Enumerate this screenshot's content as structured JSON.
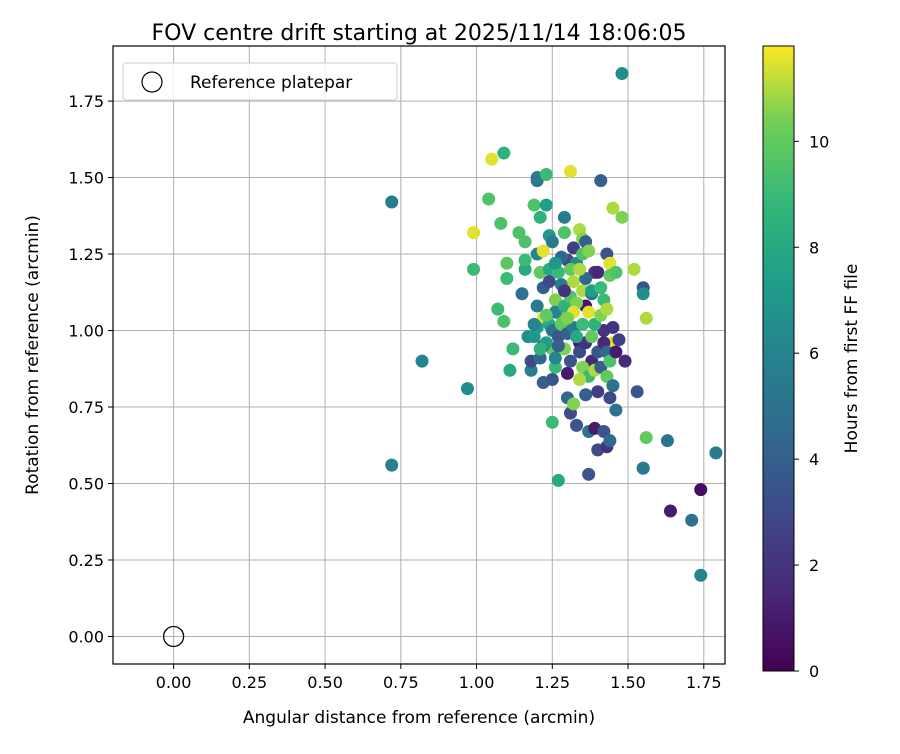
{
  "chart_data": {
    "type": "scatter",
    "title": "FOV centre drift starting at 2025/11/14 18:06:05",
    "xlabel": "Angular distance from reference (arcmin)",
    "ylabel": "Rotation from reference (arcmin)",
    "xlim": [
      -0.2,
      1.82
    ],
    "ylim": [
      -0.09,
      1.93
    ],
    "x_ticks": [
      "0.00",
      "0.25",
      "0.50",
      "0.75",
      "1.00",
      "1.25",
      "1.50",
      "1.75"
    ],
    "y_ticks": [
      "0.00",
      "0.25",
      "0.50",
      "0.75",
      "1.00",
      "1.25",
      "1.50",
      "1.75"
    ],
    "grid": true,
    "legend": {
      "position": "top-left",
      "entries": [
        "Reference platepar"
      ]
    },
    "colorbar": {
      "label": "Hours from first FF file",
      "colormap": "viridis",
      "range": [
        0,
        11.8
      ],
      "ticks": [
        "0",
        "2",
        "4",
        "6",
        "8",
        "10"
      ]
    },
    "reference_point": {
      "x": 0.0,
      "y": 0.0
    },
    "points": [
      {
        "x": 1.48,
        "y": 1.84,
        "c": 6.5
      },
      {
        "x": 0.72,
        "y": 1.42,
        "c": 5.5
      },
      {
        "x": 0.82,
        "y": 0.9,
        "c": 6.0
      },
      {
        "x": 0.97,
        "y": 0.81,
        "c": 6.5
      },
      {
        "x": 0.72,
        "y": 0.56,
        "c": 5.8
      },
      {
        "x": 1.09,
        "y": 1.58,
        "c": 8.5
      },
      {
        "x": 1.05,
        "y": 1.56,
        "c": 11.5
      },
      {
        "x": 1.04,
        "y": 1.43,
        "c": 9.5
      },
      {
        "x": 0.99,
        "y": 1.32,
        "c": 11.5
      },
      {
        "x": 0.99,
        "y": 1.2,
        "c": 9.0
      },
      {
        "x": 1.08,
        "y": 1.35,
        "c": 9.5
      },
      {
        "x": 1.1,
        "y": 1.17,
        "c": 9.0
      },
      {
        "x": 1.1,
        "y": 1.22,
        "c": 9.8
      },
      {
        "x": 1.07,
        "y": 1.07,
        "c": 9.0
      },
      {
        "x": 1.09,
        "y": 1.03,
        "c": 9.5
      },
      {
        "x": 1.11,
        "y": 0.87,
        "c": 8.0
      },
      {
        "x": 1.12,
        "y": 0.94,
        "c": 9.0
      },
      {
        "x": 1.14,
        "y": 1.32,
        "c": 9.5
      },
      {
        "x": 1.15,
        "y": 1.12,
        "c": 5.0
      },
      {
        "x": 1.16,
        "y": 1.29,
        "c": 9.5
      },
      {
        "x": 1.16,
        "y": 1.2,
        "c": 8.0
      },
      {
        "x": 1.16,
        "y": 1.23,
        "c": 9.0
      },
      {
        "x": 1.17,
        "y": 0.98,
        "c": 6.5
      },
      {
        "x": 1.18,
        "y": 0.87,
        "c": 5.5
      },
      {
        "x": 1.19,
        "y": 1.41,
        "c": 9.5
      },
      {
        "x": 1.2,
        "y": 1.49,
        "c": 5.0
      },
      {
        "x": 1.2,
        "y": 1.5,
        "c": 5.5
      },
      {
        "x": 1.2,
        "y": 1.25,
        "c": 6.0
      },
      {
        "x": 1.21,
        "y": 1.37,
        "c": 8.5
      },
      {
        "x": 1.21,
        "y": 1.19,
        "c": 10.0
      },
      {
        "x": 1.22,
        "y": 1.14,
        "c": 4.0
      },
      {
        "x": 1.22,
        "y": 0.83,
        "c": 4.0
      },
      {
        "x": 1.22,
        "y": 1.04,
        "c": 11.5
      },
      {
        "x": 1.23,
        "y": 1.51,
        "c": 9.0
      },
      {
        "x": 1.23,
        "y": 1.41,
        "c": 7.5
      },
      {
        "x": 1.24,
        "y": 1.2,
        "c": 8.0
      },
      {
        "x": 1.24,
        "y": 1.31,
        "c": 7.0
      },
      {
        "x": 1.25,
        "y": 0.84,
        "c": 3.5
      },
      {
        "x": 1.25,
        "y": 0.7,
        "c": 9.0
      },
      {
        "x": 1.25,
        "y": 0.94,
        "c": 10.0
      },
      {
        "x": 1.26,
        "y": 0.88,
        "c": 9.0
      },
      {
        "x": 1.26,
        "y": 1.1,
        "c": 10.5
      },
      {
        "x": 1.27,
        "y": 0.51,
        "c": 8.0
      },
      {
        "x": 1.28,
        "y": 1.05,
        "c": 10.5
      },
      {
        "x": 1.28,
        "y": 1.15,
        "c": 5.5
      },
      {
        "x": 1.29,
        "y": 1.37,
        "c": 5.5
      },
      {
        "x": 1.29,
        "y": 1.32,
        "c": 9.5
      },
      {
        "x": 1.3,
        "y": 0.86,
        "c": 1.0
      },
      {
        "x": 1.3,
        "y": 0.78,
        "c": 4.5
      },
      {
        "x": 1.31,
        "y": 1.52,
        "c": 11.5
      },
      {
        "x": 1.31,
        "y": 0.73,
        "c": 3.0
      },
      {
        "x": 1.32,
        "y": 0.76,
        "c": 10.5
      },
      {
        "x": 1.32,
        "y": 1.27,
        "c": 2.5
      },
      {
        "x": 1.32,
        "y": 1.16,
        "c": 11.0
      },
      {
        "x": 1.33,
        "y": 0.69,
        "c": 3.5
      },
      {
        "x": 1.34,
        "y": 0.96,
        "c": 1.0
      },
      {
        "x": 1.34,
        "y": 1.33,
        "c": 11.0
      },
      {
        "x": 1.35,
        "y": 1.3,
        "c": 10.5
      },
      {
        "x": 1.35,
        "y": 1.13,
        "c": 11.0
      },
      {
        "x": 1.36,
        "y": 0.79,
        "c": 4.0
      },
      {
        "x": 1.36,
        "y": 1.08,
        "c": 0.8
      },
      {
        "x": 1.37,
        "y": 0.67,
        "c": 5.0
      },
      {
        "x": 1.37,
        "y": 0.53,
        "c": 3.5
      },
      {
        "x": 1.38,
        "y": 0.9,
        "c": 1.5
      },
      {
        "x": 1.39,
        "y": 1.19,
        "c": 2.0
      },
      {
        "x": 1.39,
        "y": 0.68,
        "c": 1.0
      },
      {
        "x": 1.4,
        "y": 0.61,
        "c": 3.0
      },
      {
        "x": 1.41,
        "y": 1.49,
        "c": 4.0
      },
      {
        "x": 1.42,
        "y": 1.0,
        "c": 2.0
      },
      {
        "x": 1.42,
        "y": 0.67,
        "c": 3.5
      },
      {
        "x": 1.43,
        "y": 1.25,
        "c": 3.5
      },
      {
        "x": 1.43,
        "y": 0.62,
        "c": 2.0
      },
      {
        "x": 1.44,
        "y": 0.64,
        "c": 4.5
      },
      {
        "x": 1.44,
        "y": 1.22,
        "c": 11.5
      },
      {
        "x": 1.45,
        "y": 1.4,
        "c": 11.0
      },
      {
        "x": 1.45,
        "y": 0.96,
        "c": 11.5
      },
      {
        "x": 1.46,
        "y": 0.74,
        "c": 5.0
      },
      {
        "x": 1.47,
        "y": 0.97,
        "c": 2.5
      },
      {
        "x": 1.48,
        "y": 1.37,
        "c": 10.5
      },
      {
        "x": 1.49,
        "y": 0.9,
        "c": 1.5
      },
      {
        "x": 1.52,
        "y": 1.2,
        "c": 11.0
      },
      {
        "x": 1.53,
        "y": 0.8,
        "c": 3.5
      },
      {
        "x": 1.55,
        "y": 1.14,
        "c": 3.5
      },
      {
        "x": 1.55,
        "y": 1.12,
        "c": 6.5
      },
      {
        "x": 1.56,
        "y": 1.04,
        "c": 11.0
      },
      {
        "x": 1.56,
        "y": 0.65,
        "c": 10.0
      },
      {
        "x": 1.55,
        "y": 0.55,
        "c": 4.0
      },
      {
        "x": 1.55,
        "y": 0.55,
        "c": 5.5
      },
      {
        "x": 1.63,
        "y": 0.64,
        "c": 5.0
      },
      {
        "x": 1.64,
        "y": 0.41,
        "c": 1.0
      },
      {
        "x": 1.71,
        "y": 0.38,
        "c": 5.0
      },
      {
        "x": 1.74,
        "y": 0.2,
        "c": 6.0
      },
      {
        "x": 1.74,
        "y": 0.48,
        "c": 0.5
      },
      {
        "x": 1.79,
        "y": 0.6,
        "c": 5.5
      },
      {
        "x": 1.18,
        "y": 0.9,
        "c": 3.0
      },
      {
        "x": 1.19,
        "y": 0.98,
        "c": 7.0
      },
      {
        "x": 1.2,
        "y": 1.01,
        "c": 7.5
      },
      {
        "x": 1.21,
        "y": 0.91,
        "c": 4.5
      },
      {
        "x": 1.22,
        "y": 0.95,
        "c": 2.5
      },
      {
        "x": 1.23,
        "y": 0.96,
        "c": 7.5
      },
      {
        "x": 1.24,
        "y": 1.02,
        "c": 8.0
      },
      {
        "x": 1.25,
        "y": 1.0,
        "c": 5.0
      },
      {
        "x": 1.26,
        "y": 1.06,
        "c": 6.0
      },
      {
        "x": 1.27,
        "y": 0.98,
        "c": 3.5
      },
      {
        "x": 1.28,
        "y": 1.02,
        "c": 10.0
      },
      {
        "x": 1.29,
        "y": 1.08,
        "c": 8.5
      },
      {
        "x": 1.3,
        "y": 0.99,
        "c": 4.0
      },
      {
        "x": 1.3,
        "y": 1.23,
        "c": 3.0
      },
      {
        "x": 1.31,
        "y": 1.11,
        "c": 9.5
      },
      {
        "x": 1.32,
        "y": 1.01,
        "c": 5.5
      },
      {
        "x": 1.33,
        "y": 1.09,
        "c": 10.5
      },
      {
        "x": 1.33,
        "y": 1.22,
        "c": 6.5
      },
      {
        "x": 1.34,
        "y": 0.93,
        "c": 3.0
      },
      {
        "x": 1.35,
        "y": 1.02,
        "c": 9.0
      },
      {
        "x": 1.35,
        "y": 0.88,
        "c": 10.5
      },
      {
        "x": 1.36,
        "y": 1.17,
        "c": 4.5
      },
      {
        "x": 1.36,
        "y": 0.96,
        "c": 2.0
      },
      {
        "x": 1.37,
        "y": 1.06,
        "c": 11.5
      },
      {
        "x": 1.37,
        "y": 0.85,
        "c": 9.0
      },
      {
        "x": 1.38,
        "y": 0.98,
        "c": 10.0
      },
      {
        "x": 1.38,
        "y": 1.12,
        "c": 5.0
      },
      {
        "x": 1.39,
        "y": 0.87,
        "c": 11.0
      },
      {
        "x": 1.39,
        "y": 1.02,
        "c": 8.5
      },
      {
        "x": 1.4,
        "y": 0.93,
        "c": 3.5
      },
      {
        "x": 1.4,
        "y": 0.8,
        "c": 2.5
      },
      {
        "x": 1.41,
        "y": 1.05,
        "c": 10.5
      },
      {
        "x": 1.41,
        "y": 0.88,
        "c": 4.0
      },
      {
        "x": 1.42,
        "y": 0.96,
        "c": 1.5
      },
      {
        "x": 1.42,
        "y": 1.1,
        "c": 9.0
      },
      {
        "x": 1.43,
        "y": 0.85,
        "c": 10.0
      },
      {
        "x": 1.43,
        "y": 0.93,
        "c": 4.5
      },
      {
        "x": 1.44,
        "y": 0.78,
        "c": 3.0
      },
      {
        "x": 1.44,
        "y": 0.9,
        "c": 9.5
      },
      {
        "x": 1.45,
        "y": 0.82,
        "c": 5.0
      },
      {
        "x": 1.45,
        "y": 1.01,
        "c": 2.0
      },
      {
        "x": 1.46,
        "y": 0.93,
        "c": 1.0
      },
      {
        "x": 1.27,
        "y": 1.19,
        "c": 9.0
      },
      {
        "x": 1.28,
        "y": 1.24,
        "c": 4.5
      },
      {
        "x": 1.29,
        "y": 1.13,
        "c": 2.0
      },
      {
        "x": 1.31,
        "y": 1.2,
        "c": 10.0
      },
      {
        "x": 1.32,
        "y": 1.06,
        "c": 11.5
      },
      {
        "x": 1.34,
        "y": 1.2,
        "c": 11.0
      },
      {
        "x": 1.35,
        "y": 1.25,
        "c": 9.5
      },
      {
        "x": 1.36,
        "y": 1.29,
        "c": 4.0
      },
      {
        "x": 1.37,
        "y": 1.26,
        "c": 10.5
      },
      {
        "x": 1.38,
        "y": 1.13,
        "c": 7.5
      },
      {
        "x": 1.4,
        "y": 1.19,
        "c": 1.5
      },
      {
        "x": 1.41,
        "y": 1.14,
        "c": 9.0
      },
      {
        "x": 1.43,
        "y": 1.07,
        "c": 11.0
      },
      {
        "x": 1.44,
        "y": 1.18,
        "c": 10.0
      },
      {
        "x": 1.46,
        "y": 1.19,
        "c": 9.5
      },
      {
        "x": 1.26,
        "y": 0.91,
        "c": 6.0
      },
      {
        "x": 1.29,
        "y": 0.94,
        "c": 10.5
      },
      {
        "x": 1.31,
        "y": 0.9,
        "c": 3.5
      },
      {
        "x": 1.33,
        "y": 0.98,
        "c": 8.0
      },
      {
        "x": 1.34,
        "y": 0.84,
        "c": 11.0
      },
      {
        "x": 1.2,
        "y": 1.08,
        "c": 5.5
      },
      {
        "x": 1.22,
        "y": 1.26,
        "c": 11.5
      },
      {
        "x": 1.24,
        "y": 1.16,
        "c": 3.0
      },
      {
        "x": 1.26,
        "y": 1.22,
        "c": 7.0
      },
      {
        "x": 1.25,
        "y": 1.29,
        "c": 5.5
      },
      {
        "x": 1.21,
        "y": 0.94,
        "c": 8.5
      },
      {
        "x": 1.19,
        "y": 1.02,
        "c": 6.0
      },
      {
        "x": 1.23,
        "y": 1.05,
        "c": 10.0
      },
      {
        "x": 1.27,
        "y": 0.95,
        "c": 4.0
      },
      {
        "x": 1.3,
        "y": 1.04,
        "c": 10.5
      }
    ]
  }
}
